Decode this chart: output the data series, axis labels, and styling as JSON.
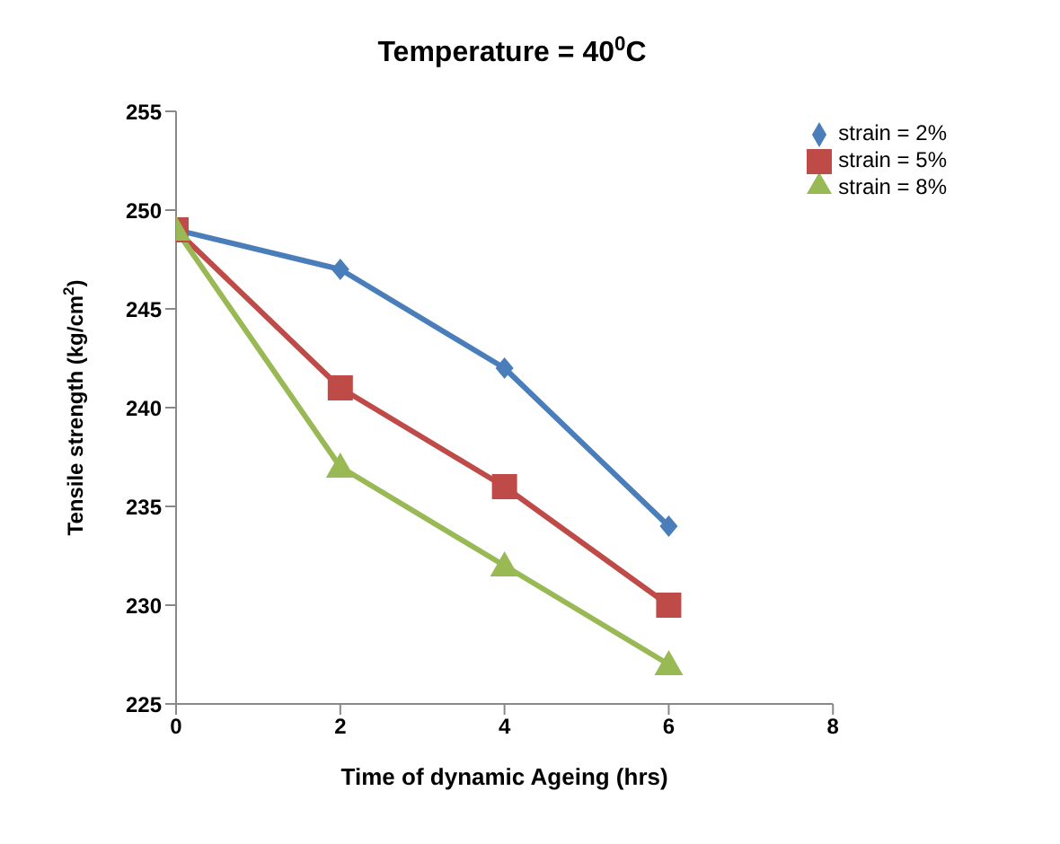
{
  "chart_data": {
    "type": "line",
    "title": "Temperature = 40$^{0}$C",
    "xlabel": "Time of dynamic Ageing (hrs)",
    "ylabel": "Tensile strength (kg/cm$^{2}$)",
    "x": [
      0,
      2,
      4,
      6
    ],
    "series": [
      {
        "name": "strain = 2%",
        "color": "#4a7ebb",
        "marker": "diamond",
        "values": [
          249,
          247,
          242,
          234
        ]
      },
      {
        "name": "strain = 5%",
        "color": "#be4b48",
        "marker": "square",
        "values": [
          249,
          241,
          236,
          230
        ]
      },
      {
        "name": "strain = 8%",
        "color": "#98b954",
        "marker": "triangle",
        "values": [
          249,
          237,
          232,
          227
        ]
      }
    ],
    "xlim": [
      0,
      8
    ],
    "xticks": [
      0,
      2,
      4,
      6,
      8
    ],
    "ylim": [
      225,
      255
    ],
    "yticks": [
      225,
      230,
      235,
      240,
      245,
      250,
      255
    ],
    "grid": false,
    "legend": "top right",
    "line_style": "solid"
  }
}
